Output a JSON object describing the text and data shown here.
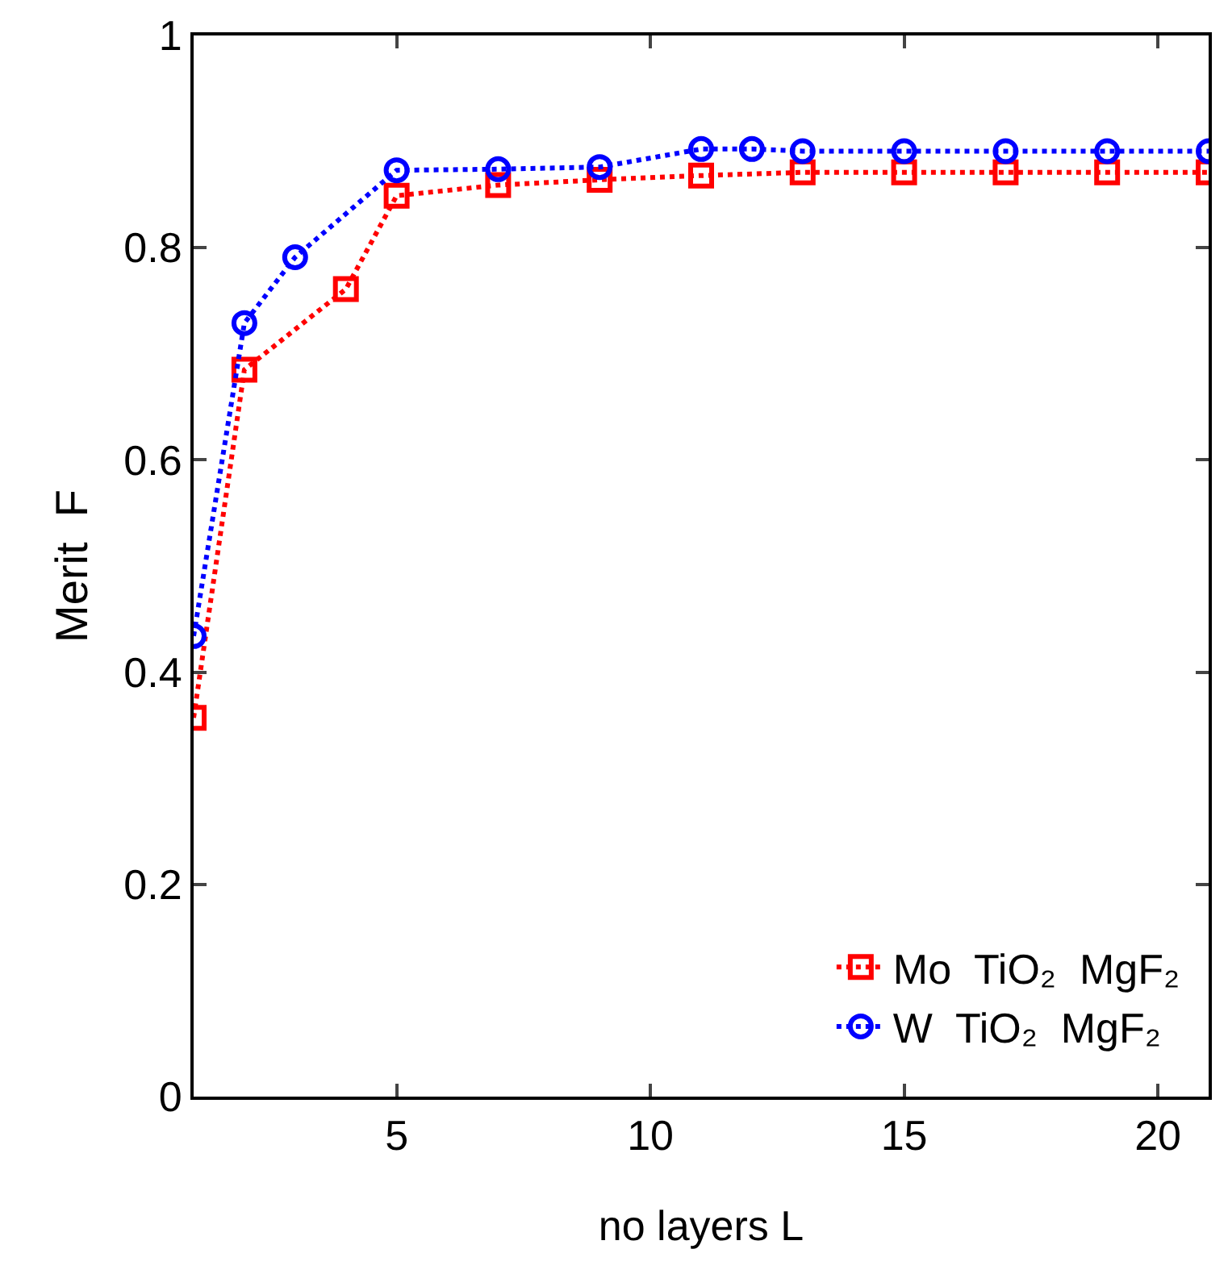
{
  "chart_data": {
    "type": "line",
    "xlabel": "no layers L",
    "ylabel": "Merit  F",
    "xlim": [
      1,
      21
    ],
    "xticks": [
      5,
      10,
      15,
      20
    ],
    "ylim": [
      0,
      1
    ],
    "yticks": [
      0,
      0.2,
      0.4,
      0.6,
      0.8,
      1
    ],
    "grid": false,
    "legend": "bottom right",
    "line_style": "dotted",
    "series": [
      {
        "name": "Mo  TiO₂  MgF₂",
        "color": "#ff0000",
        "marker": "square",
        "x": [
          1,
          2,
          4,
          5,
          7,
          9,
          11,
          13,
          15,
          17,
          19,
          21
        ],
        "values": [
          0.357,
          0.685,
          0.761,
          0.849,
          0.859,
          0.864,
          0.868,
          0.871,
          0.871,
          0.871,
          0.871,
          0.871
        ]
      },
      {
        "name": "W  TiO₂  MgF₂",
        "color": "#0000ff",
        "marker": "circle",
        "x": [
          1,
          2,
          3,
          5,
          7,
          9,
          11,
          12,
          13,
          15,
          17,
          19,
          21
        ],
        "values": [
          0.434,
          0.729,
          0.791,
          0.873,
          0.874,
          0.876,
          0.893,
          0.893,
          0.891,
          0.891,
          0.891,
          0.891,
          0.891
        ]
      }
    ]
  }
}
